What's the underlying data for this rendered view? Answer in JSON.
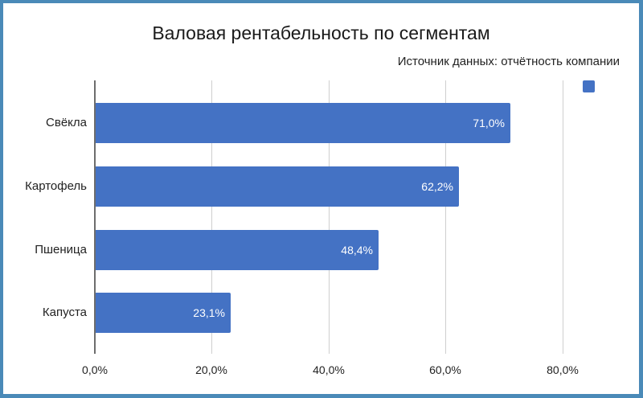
{
  "chart_data": {
    "type": "bar",
    "orientation": "horizontal",
    "title": "Валовая рентабельность по сегментам",
    "subtitle": "Источник данных: отчётность компании",
    "categories": [
      "Свёкла",
      "Картофель",
      "Пшеница",
      "Капуста"
    ],
    "values": [
      71.0,
      62.2,
      48.4,
      23.1
    ],
    "value_labels": [
      "71,0%",
      "62,2%",
      "48,4%",
      "23,1%"
    ],
    "series": [
      {
        "name": "",
        "values": [
          71.0,
          62.2,
          48.4,
          23.1
        ],
        "color": "#4472c4"
      }
    ],
    "xlabel": "",
    "ylabel": "",
    "xlim": [
      0,
      88
    ],
    "x_ticks": [
      0,
      20,
      40,
      60,
      80
    ],
    "x_tick_labels": [
      "0,0%",
      "20,0%",
      "40,0%",
      "60,0%",
      "80,0%"
    ],
    "grid": "vertical",
    "legend": {
      "position": "top-right",
      "entries": [
        ""
      ]
    }
  },
  "colors": {
    "bar": "#4472c4",
    "frame": "#4a8ab8",
    "grid": "#cfcfcf",
    "axis": "#6d6d6d"
  }
}
